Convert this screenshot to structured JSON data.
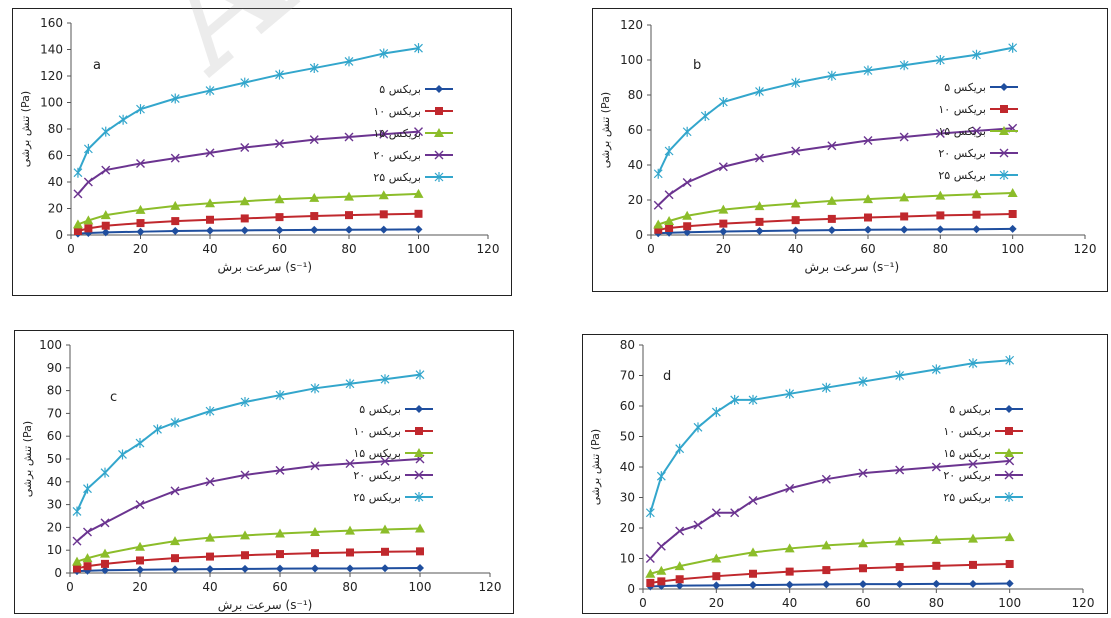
{
  "watermark": "Archive",
  "legend_labels": [
    "بریکس ۵",
    "بریکس ۱۰",
    "بریکس ۱۵",
    "بریکس ۲۰",
    "بریکس ۲۵"
  ],
  "series_colors": [
    "#1f4e9e",
    "#c0282d",
    "#8cbd2a",
    "#6b3490",
    "#33a6cc"
  ],
  "chart_data": [
    {
      "type": "line",
      "panel_label": "a",
      "xlabel": "سرعت برش (s⁻¹)",
      "ylabel": "تنش برشی (Pa)",
      "xlim": [
        0,
        120
      ],
      "ylim": [
        0,
        160
      ],
      "xticks": [
        0,
        20,
        40,
        60,
        80,
        100,
        120
      ],
      "yticks": [
        0,
        20,
        40,
        60,
        80,
        100,
        120,
        140,
        160
      ],
      "legend_position": "right",
      "series": [
        {
          "name": "بریکس ۵",
          "marker": "diamond",
          "x": [
            2,
            5,
            10,
            20,
            30,
            40,
            50,
            60,
            70,
            80,
            90,
            100
          ],
          "y": [
            1,
            1.5,
            2,
            2.5,
            3,
            3.3,
            3.5,
            3.7,
            3.9,
            4,
            4.1,
            4.2
          ]
        },
        {
          "name": "بریکس ۱۰",
          "marker": "square",
          "x": [
            2,
            5,
            10,
            20,
            30,
            40,
            50,
            60,
            70,
            80,
            90,
            100
          ],
          "y": [
            3,
            5,
            7,
            9,
            10.5,
            11.5,
            12.5,
            13.5,
            14.3,
            15,
            15.6,
            16
          ]
        },
        {
          "name": "بریکس ۱۵",
          "marker": "triangle",
          "x": [
            2,
            5,
            10,
            20,
            30,
            40,
            50,
            60,
            70,
            80,
            90,
            100
          ],
          "y": [
            8,
            11,
            15,
            19,
            22,
            24,
            25.5,
            27,
            28,
            29,
            30,
            31
          ]
        },
        {
          "name": "بریکس ۲۰",
          "marker": "x",
          "x": [
            2,
            5,
            10,
            20,
            30,
            40,
            50,
            60,
            70,
            80,
            90,
            100
          ],
          "y": [
            31,
            40,
            49,
            54,
            58,
            62,
            66,
            69,
            72,
            74,
            76,
            78
          ]
        },
        {
          "name": "بریکس ۲۵",
          "marker": "star",
          "x": [
            2,
            5,
            10,
            15,
            20,
            30,
            40,
            50,
            60,
            70,
            80,
            90,
            100
          ],
          "y": [
            47,
            65,
            78,
            87,
            95,
            103,
            109,
            115,
            121,
            126,
            131,
            137,
            141
          ]
        }
      ]
    },
    {
      "type": "line",
      "panel_label": "b",
      "xlabel": "سرعت برش (s⁻¹)",
      "ylabel": "تنش برشی (Pa)",
      "xlim": [
        0,
        120
      ],
      "ylim": [
        0,
        120
      ],
      "xticks": [
        0,
        20,
        40,
        60,
        80,
        100,
        120
      ],
      "yticks": [
        0,
        20,
        40,
        60,
        80,
        100,
        120
      ],
      "legend_position": "right",
      "series": [
        {
          "name": "بریکس ۵",
          "marker": "diamond",
          "x": [
            2,
            5,
            10,
            20,
            30,
            40,
            50,
            60,
            70,
            80,
            90,
            100
          ],
          "y": [
            1,
            1.3,
            1.6,
            2,
            2.3,
            2.6,
            2.8,
            3,
            3.1,
            3.2,
            3.3,
            3.5
          ]
        },
        {
          "name": "بریکس ۱۰",
          "marker": "square",
          "x": [
            2,
            5,
            10,
            20,
            30,
            40,
            50,
            60,
            70,
            80,
            90,
            100
          ],
          "y": [
            3,
            4,
            5,
            6.5,
            7.5,
            8.5,
            9.2,
            10,
            10.6,
            11.2,
            11.6,
            12
          ]
        },
        {
          "name": "بریکس ۱۵",
          "marker": "triangle",
          "x": [
            2,
            5,
            10,
            20,
            30,
            40,
            50,
            60,
            70,
            80,
            90,
            100
          ],
          "y": [
            6,
            8,
            11,
            14.5,
            16.5,
            18,
            19.5,
            20.5,
            21.5,
            22.5,
            23.3,
            24
          ]
        },
        {
          "name": "بریکس ۲۰",
          "marker": "x",
          "x": [
            2,
            5,
            10,
            20,
            30,
            40,
            50,
            60,
            70,
            80,
            90,
            100
          ],
          "y": [
            17,
            23,
            30,
            39,
            44,
            48,
            51,
            54,
            56,
            58,
            59.5,
            61
          ]
        },
        {
          "name": "بریکس ۲۵",
          "marker": "star",
          "x": [
            2,
            5,
            10,
            15,
            20,
            30,
            40,
            50,
            60,
            70,
            80,
            90,
            100
          ],
          "y": [
            35,
            48,
            59,
            68,
            76,
            82,
            87,
            91,
            94,
            97,
            100,
            103,
            107
          ]
        }
      ]
    },
    {
      "type": "line",
      "panel_label": "c",
      "xlabel": "سرعت برش (s⁻¹)",
      "ylabel": "تنش برشی (Pa)",
      "xlim": [
        0,
        120
      ],
      "ylim": [
        0,
        100
      ],
      "xticks": [
        0,
        20,
        40,
        60,
        80,
        100,
        120
      ],
      "yticks": [
        0,
        10,
        20,
        30,
        40,
        50,
        60,
        70,
        80,
        90,
        100
      ],
      "legend_position": "right",
      "series": [
        {
          "name": "بریکس ۵",
          "marker": "diamond",
          "x": [
            2,
            5,
            10,
            20,
            30,
            40,
            50,
            60,
            70,
            80,
            90,
            100
          ],
          "y": [
            0.8,
            1,
            1.2,
            1.4,
            1.6,
            1.7,
            1.8,
            1.9,
            2,
            2,
            2.1,
            2.2
          ]
        },
        {
          "name": "بریکس ۱۰",
          "marker": "square",
          "x": [
            2,
            5,
            10,
            20,
            30,
            40,
            50,
            60,
            70,
            80,
            90,
            100
          ],
          "y": [
            2,
            3,
            4,
            5.5,
            6.5,
            7.2,
            7.8,
            8.3,
            8.7,
            9,
            9.3,
            9.5
          ]
        },
        {
          "name": "بریکس ۱۵",
          "marker": "triangle",
          "x": [
            2,
            5,
            10,
            20,
            30,
            40,
            50,
            60,
            70,
            80,
            90,
            100
          ],
          "y": [
            5,
            6.5,
            8.5,
            11.5,
            14,
            15.5,
            16.5,
            17.3,
            18,
            18.6,
            19.1,
            19.5
          ]
        },
        {
          "name": "بریکس ۲۰",
          "marker": "x",
          "x": [
            2,
            5,
            10,
            20,
            30,
            40,
            50,
            60,
            70,
            80,
            90,
            100
          ],
          "y": [
            14,
            18,
            22,
            30,
            36,
            40,
            43,
            45,
            47,
            48,
            49,
            50
          ]
        },
        {
          "name": "بریکس ۲۵",
          "marker": "star",
          "x": [
            2,
            5,
            10,
            15,
            20,
            25,
            30,
            40,
            50,
            60,
            70,
            80,
            90,
            100
          ],
          "y": [
            27,
            37,
            44,
            52,
            57,
            63,
            66,
            71,
            75,
            78,
            81,
            83,
            85,
            87
          ]
        }
      ]
    },
    {
      "type": "line",
      "panel_label": "d",
      "xlabel": "سرعت برش (s⁻¹)",
      "ylabel": "تنش برشی (Pa)",
      "xlim": [
        0,
        120
      ],
      "ylim": [
        0,
        80
      ],
      "xticks": [
        0,
        20,
        40,
        60,
        80,
        100,
        120
      ],
      "yticks": [
        0,
        10,
        20,
        30,
        40,
        50,
        60,
        70,
        80
      ],
      "legend_position": "right",
      "series": [
        {
          "name": "بریکس ۵",
          "marker": "diamond",
          "x": [
            2,
            5,
            10,
            20,
            30,
            40,
            50,
            60,
            70,
            80,
            90,
            100
          ],
          "y": [
            0.8,
            1,
            1.1,
            1.2,
            1.3,
            1.4,
            1.5,
            1.6,
            1.6,
            1.7,
            1.7,
            1.8
          ]
        },
        {
          "name": "بریکس ۱۰",
          "marker": "square",
          "x": [
            2,
            5,
            10,
            20,
            30,
            40,
            50,
            60,
            70,
            80,
            90,
            100
          ],
          "y": [
            2,
            2.5,
            3.2,
            4.2,
            5,
            5.7,
            6.2,
            6.8,
            7.2,
            7.6,
            7.9,
            8.2
          ]
        },
        {
          "name": "بریکس ۱۵",
          "marker": "triangle",
          "x": [
            2,
            5,
            10,
            20,
            30,
            40,
            50,
            60,
            70,
            80,
            90,
            100
          ],
          "y": [
            5,
            6,
            7.5,
            10,
            12,
            13.3,
            14.3,
            15,
            15.6,
            16.1,
            16.5,
            17
          ]
        },
        {
          "name": "بریکس ۲۰",
          "marker": "x",
          "x": [
            2,
            5,
            10,
            15,
            20,
            25,
            30,
            40,
            50,
            60,
            70,
            80,
            90,
            100
          ],
          "y": [
            10,
            14,
            19,
            21,
            25,
            25,
            29,
            33,
            36,
            38,
            39,
            40,
            41,
            42
          ]
        },
        {
          "name": "بریکس ۲۵",
          "marker": "star",
          "x": [
            2,
            5,
            10,
            15,
            20,
            25,
            30,
            40,
            50,
            60,
            70,
            80,
            90,
            100
          ],
          "y": [
            25,
            37,
            46,
            53,
            58,
            62,
            62,
            64,
            66,
            68,
            70,
            72,
            74,
            75
          ]
        }
      ]
    }
  ]
}
